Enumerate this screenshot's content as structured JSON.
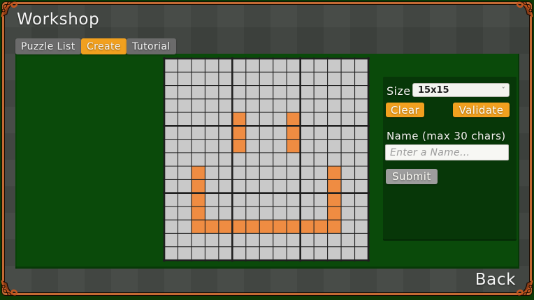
{
  "window": {
    "title": "Workshop",
    "back_label": "Back"
  },
  "tabs": [
    {
      "label": "Puzzle List",
      "active": false
    },
    {
      "label": "Create",
      "active": true
    },
    {
      "label": "Tutorial",
      "active": false
    }
  ],
  "form": {
    "size_label": "Size",
    "size_value": "15x15",
    "clear_label": "Clear",
    "validate_label": "Validate",
    "name_label": "Name (max 30 chars)",
    "name_placeholder": "Enter a Name...",
    "name_value": "",
    "submit_label": "Submit"
  },
  "grid": {
    "rows": 15,
    "cols": 15,
    "cell_color": "#c9c9c9",
    "filled_color": "#ef8c42",
    "line_color": "#1f1f1f",
    "filled_cells": [
      [
        4,
        5
      ],
      [
        4,
        9
      ],
      [
        5,
        5
      ],
      [
        5,
        9
      ],
      [
        6,
        5
      ],
      [
        6,
        9
      ],
      [
        8,
        2
      ],
      [
        8,
        12
      ],
      [
        9,
        2
      ],
      [
        9,
        12
      ],
      [
        10,
        2
      ],
      [
        10,
        12
      ],
      [
        11,
        2
      ],
      [
        11,
        12
      ],
      [
        12,
        2
      ],
      [
        12,
        3
      ],
      [
        12,
        4
      ],
      [
        12,
        5
      ],
      [
        12,
        6
      ],
      [
        12,
        7
      ],
      [
        12,
        8
      ],
      [
        12,
        9
      ],
      [
        12,
        10
      ],
      [
        12,
        11
      ],
      [
        12,
        12
      ]
    ]
  },
  "colors": {
    "accent_orange": "#f1a01f",
    "cell_orange": "#ef8c42",
    "frame_orange": "#c46a33",
    "bg_green": "#0d3a06",
    "main_green": "#0a4a0a",
    "panel_green": "#073708",
    "content_gray": "#3e423e",
    "tab_gray": "#6b6b6b",
    "submit_gray": "#9d9d9d"
  }
}
